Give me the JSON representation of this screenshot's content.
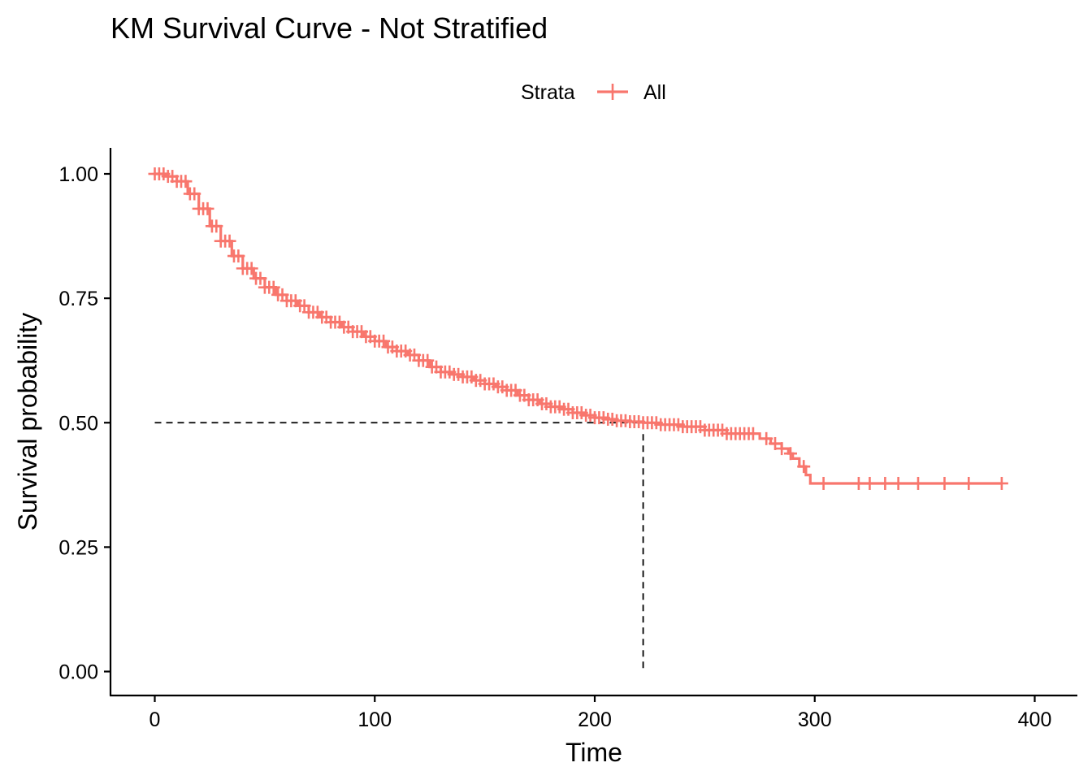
{
  "chart_data": {
    "type": "line",
    "title": "KM Survival Curve - Not Stratified",
    "xlabel": "Time",
    "ylabel": "Survival probability",
    "xlim": [
      -20,
      420
    ],
    "ylim": [
      -0.05,
      1.05
    ],
    "x_ticks": [
      0,
      100,
      200,
      300,
      400
    ],
    "x_tick_labels": [
      "0",
      "100",
      "200",
      "300",
      "400"
    ],
    "y_ticks": [
      0,
      0.25,
      0.5,
      0.75,
      1.0
    ],
    "y_tick_labels": [
      "0.00",
      "0.25",
      "0.50",
      "0.75",
      "1.00"
    ],
    "grid": false,
    "legend": {
      "title": "Strata",
      "position": "top",
      "entries": [
        "All"
      ]
    },
    "median_survival": {
      "time": 222,
      "probability": 0.5
    },
    "series": [
      {
        "name": "All",
        "color": "#F8766D",
        "points": [
          [
            0,
            1.0
          ],
          [
            5,
            0.995
          ],
          [
            10,
            0.985
          ],
          [
            15,
            0.96
          ],
          [
            20,
            0.93
          ],
          [
            25,
            0.895
          ],
          [
            30,
            0.865
          ],
          [
            35,
            0.835
          ],
          [
            40,
            0.81
          ],
          [
            45,
            0.79
          ],
          [
            50,
            0.772
          ],
          [
            55,
            0.757
          ],
          [
            60,
            0.745
          ],
          [
            65,
            0.735
          ],
          [
            70,
            0.722
          ],
          [
            75,
            0.712
          ],
          [
            80,
            0.702
          ],
          [
            85,
            0.692
          ],
          [
            90,
            0.683
          ],
          [
            95,
            0.673
          ],
          [
            100,
            0.664
          ],
          [
            105,
            0.652
          ],
          [
            110,
            0.644
          ],
          [
            115,
            0.636
          ],
          [
            120,
            0.625
          ],
          [
            125,
            0.612
          ],
          [
            130,
            0.602
          ],
          [
            135,
            0.597
          ],
          [
            140,
            0.592
          ],
          [
            145,
            0.585
          ],
          [
            150,
            0.578
          ],
          [
            155,
            0.572
          ],
          [
            160,
            0.565
          ],
          [
            165,
            0.555
          ],
          [
            170,
            0.546
          ],
          [
            175,
            0.538
          ],
          [
            180,
            0.532
          ],
          [
            185,
            0.527
          ],
          [
            190,
            0.52
          ],
          [
            195,
            0.515
          ],
          [
            200,
            0.51
          ],
          [
            205,
            0.507
          ],
          [
            210,
            0.504
          ],
          [
            215,
            0.502
          ],
          [
            222,
            0.5
          ],
          [
            230,
            0.496
          ],
          [
            240,
            0.492
          ],
          [
            250,
            0.485
          ],
          [
            260,
            0.478
          ],
          [
            270,
            0.478
          ],
          [
            275,
            0.468
          ],
          [
            280,
            0.458
          ],
          [
            285,
            0.448
          ],
          [
            288,
            0.438
          ],
          [
            290,
            0.428
          ],
          [
            293,
            0.412
          ],
          [
            296,
            0.395
          ],
          [
            298,
            0.378
          ],
          [
            385,
            0.378
          ]
        ],
        "censor_times": [
          0,
          2,
          4,
          6,
          8,
          10,
          12,
          14,
          16,
          18,
          20,
          22,
          24,
          26,
          28,
          30,
          32,
          34,
          36,
          38,
          40,
          42,
          44,
          46,
          48,
          50,
          52,
          54,
          56,
          58,
          60,
          62,
          64,
          66,
          68,
          70,
          72,
          74,
          76,
          78,
          80,
          82,
          84,
          86,
          88,
          90,
          92,
          94,
          96,
          98,
          100,
          102,
          104,
          106,
          108,
          110,
          112,
          114,
          116,
          118,
          120,
          122,
          124,
          126,
          128,
          130,
          132,
          134,
          136,
          138,
          140,
          142,
          144,
          146,
          148,
          150,
          152,
          154,
          156,
          158,
          160,
          162,
          164,
          166,
          168,
          170,
          172,
          174,
          176,
          178,
          180,
          182,
          184,
          186,
          188,
          190,
          192,
          194,
          196,
          198,
          200,
          202,
          204,
          206,
          208,
          210,
          212,
          214,
          216,
          218,
          220,
          222,
          224,
          226,
          228,
          230,
          232,
          234,
          236,
          238,
          240,
          242,
          244,
          246,
          248,
          250,
          252,
          254,
          256,
          258,
          260,
          262,
          264,
          266,
          268,
          270,
          272,
          278,
          282,
          285,
          289,
          295,
          304,
          320,
          325,
          332,
          338,
          347,
          359,
          370,
          385
        ]
      }
    ]
  }
}
